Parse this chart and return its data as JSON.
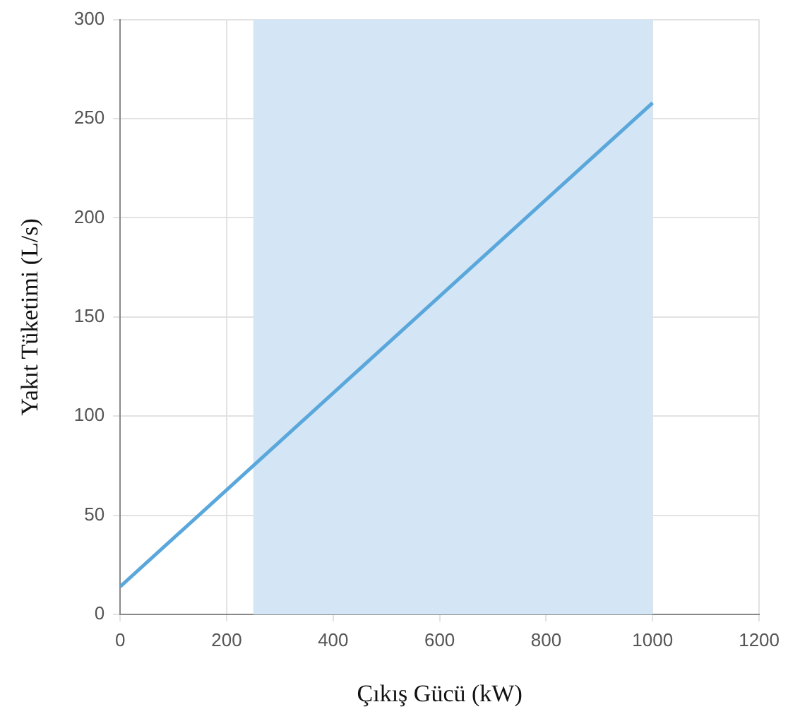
{
  "chart_data": {
    "type": "line",
    "xlabel": "Çıkış Gücü (kW)",
    "ylabel": "Yakıt Tüketimi (L/s)",
    "x": [
      0,
      1000
    ],
    "series": [
      {
        "color": "#5aa7dc",
        "values": [
          14,
          258
        ]
      }
    ],
    "xlim": [
      0,
      1200
    ],
    "xticks": [
      0,
      200,
      400,
      600,
      800,
      1000,
      1200
    ],
    "ylim": [
      0,
      300
    ],
    "yticks": [
      0,
      50,
      100,
      150,
      200,
      250,
      300
    ],
    "bands": [
      {
        "axis": "x",
        "from": 250,
        "to": 1000,
        "color": "#d4e6f5"
      }
    ],
    "grid": true,
    "legend": false,
    "marker": "none",
    "line_style": "solid"
  }
}
